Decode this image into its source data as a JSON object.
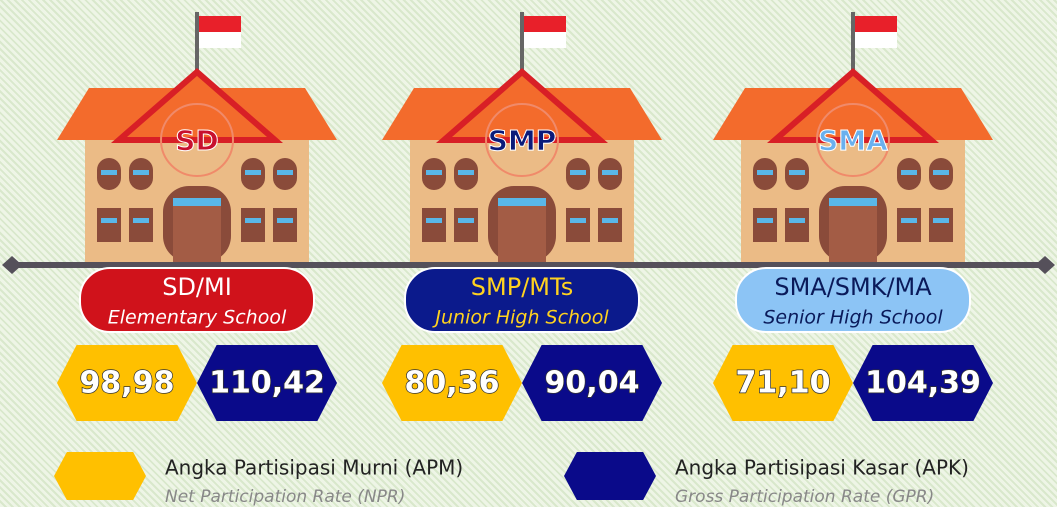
{
  "schools": [
    {
      "code": "SD",
      "name": "SD/MI",
      "english": "Elementary School",
      "apm": "98,98",
      "apk": "110,42",
      "code_color": "#c8102e",
      "pill_color": "#d0121b",
      "pill_text": "#ffffff"
    },
    {
      "code": "SMP",
      "name": "SMP/MTs",
      "english": "Junior High School",
      "apm": "80,36",
      "apk": "90,04",
      "code_color": "#0a1a7a",
      "pill_color": "#0b1a8c",
      "pill_text": "#ffd21f"
    },
    {
      "code": "SMA",
      "name": "SMA/SMK/MA",
      "english": "Senior High School",
      "apm": "71,10",
      "apk": "104,39",
      "code_color": "#6ab0ee",
      "pill_color": "#8cc4f5",
      "pill_text": "#0a1a5a"
    }
  ],
  "legend": [
    {
      "label": "Angka Partisipasi Murni (APM)",
      "english": "Net Participation Rate (NPR)",
      "color": "#ffc000"
    },
    {
      "label": "Angka Partisipasi Kasar (APK)",
      "english": "Gross Participation Rate (GPR)",
      "color": "#0a0a8a"
    }
  ]
}
